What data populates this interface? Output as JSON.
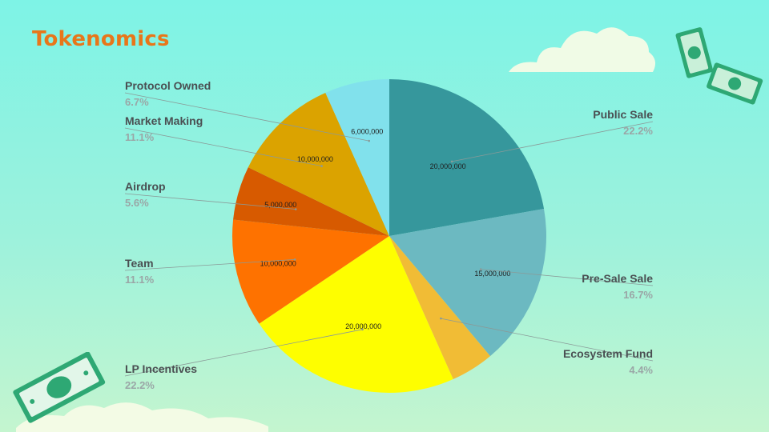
{
  "page": {
    "title": "Tokenomics"
  },
  "colors": {
    "title": "#e8761a",
    "cloud": "#f6fbe6",
    "money": "#2ea874"
  },
  "icons": [
    "cloud-icon",
    "money-bill-icon"
  ],
  "chart_data": {
    "type": "pie",
    "start_angle_deg": 0,
    "direction": "clockwise",
    "slices": [
      {
        "label": "Public Sale",
        "value": 20000000,
        "value_label": "20,000,000",
        "percent": "22.2%",
        "color": "#36979c"
      },
      {
        "label": "Pre-Sale Sale",
        "value": 15000000,
        "value_label": "15,000,000",
        "percent": "16.7%",
        "color": "#6cb9c1"
      },
      {
        "label": "Ecosystem Fund",
        "value": 4000000,
        "value_label": "",
        "percent": "4.4%",
        "color": "#f1bc35"
      },
      {
        "label": "LP Incentives",
        "value": 20000000,
        "value_label": "20,000,000",
        "percent": "22.2%",
        "color": "#fefe00"
      },
      {
        "label": "Team",
        "value": 10000000,
        "value_label": "10,000,000",
        "percent": "11.1%",
        "color": "#fe7200"
      },
      {
        "label": "Airdrop",
        "value": 5000000,
        "value_label": "5,000,000",
        "percent": "5.6%",
        "color": "#d75a00"
      },
      {
        "label": "Market Making",
        "value": 10000000,
        "value_label": "10,000,000",
        "percent": "11.1%",
        "color": "#dba300"
      },
      {
        "label": "Protocol Owned",
        "value": 6000000,
        "value_label": "6,000,000",
        "percent": "6.7%",
        "color": "#81e1ec"
      }
    ]
  }
}
